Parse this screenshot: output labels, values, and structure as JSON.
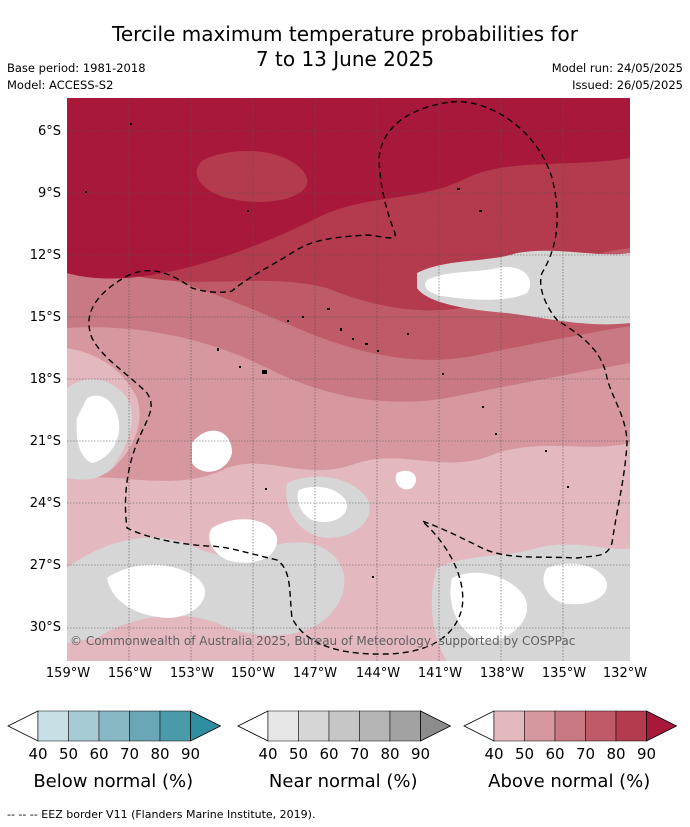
{
  "header": {
    "title_line1": "Tercile maximum temperature probabilities for",
    "title_line2": "7 to 13 June 2025",
    "base_period": "Base period: 1981-2018",
    "model": "Model: ACCESS-S2",
    "model_run": "Model run: 24/05/2025",
    "issued": "Issued: 26/05/2025"
  },
  "map": {
    "lat_labels": [
      "6°S",
      "9°S",
      "12°S",
      "15°S",
      "18°S",
      "21°S",
      "24°S",
      "27°S",
      "30°S"
    ],
    "lon_labels": [
      "159°W",
      "156°W",
      "153°W",
      "150°W",
      "147°W",
      "144°W",
      "141°W",
      "138°W",
      "135°W",
      "132°W"
    ],
    "credit": "© Commonwealth of Australia 2025, Bureau of Meteorology, supported by COSPPac"
  },
  "colorbars": [
    {
      "name": "below",
      "ticks": [
        "40",
        "50",
        "60",
        "70",
        "80",
        "90"
      ],
      "colors": [
        "#c7e0e6",
        "#a6cbd4",
        "#88b8c4",
        "#6aa6b5",
        "#4a9aaa",
        "#2f8da0"
      ],
      "label": "Below normal (%)"
    },
    {
      "name": "near",
      "ticks": [
        "40",
        "50",
        "60",
        "70",
        "80",
        "90"
      ],
      "colors": [
        "#e6e6e6",
        "#d6d6d6",
        "#c6c6c6",
        "#b4b4b4",
        "#a2a2a2",
        "#8c8c8c"
      ],
      "label": "Near normal (%)"
    },
    {
      "name": "above",
      "ticks": [
        "40",
        "50",
        "60",
        "70",
        "80",
        "90"
      ],
      "colors": [
        "#e3b9bf",
        "#d6979f",
        "#c97983",
        "#bf5a68",
        "#b43a4d",
        "#a8183a"
      ],
      "label": "Above normal (%)"
    }
  ],
  "footer": "--  --  -- EEZ border V11 (Flanders Marine Institute, 2019)."
}
